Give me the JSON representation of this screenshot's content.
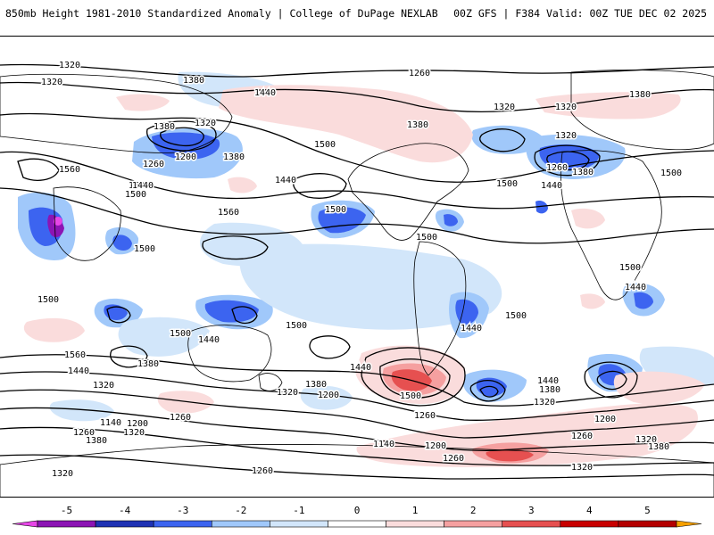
{
  "header": {
    "title": "850mb Height 1981-2010 Standardized Anomaly | College of DuPage NEXLAB",
    "run_info": "00Z GFS | F384 Valid: 00Z TUE DEC 02 2025"
  },
  "map": {
    "contour_labels": [
      {
        "text": "1320"
      },
      {
        "text": "1320"
      },
      {
        "text": "1380"
      },
      {
        "text": "1440"
      },
      {
        "text": "1260"
      },
      {
        "text": "1380"
      },
      {
        "text": "1320"
      },
      {
        "text": "1320"
      },
      {
        "text": "1380"
      },
      {
        "text": "1380"
      },
      {
        "text": "1320"
      },
      {
        "text": "1200"
      },
      {
        "text": "1260"
      },
      {
        "text": "1380"
      },
      {
        "text": "1440"
      },
      {
        "text": "1500"
      },
      {
        "text": "1500"
      },
      {
        "text": "1320"
      },
      {
        "text": "1260"
      },
      {
        "text": "1380"
      },
      {
        "text": "1500"
      },
      {
        "text": "1560"
      },
      {
        "text": "1440"
      },
      {
        "text": "1500"
      },
      {
        "text": "1500"
      },
      {
        "text": "1440"
      },
      {
        "text": "1560"
      },
      {
        "text": "1500"
      },
      {
        "text": "1500"
      },
      {
        "text": "1500"
      },
      {
        "text": "1500"
      },
      {
        "text": "1440"
      },
      {
        "text": "1500"
      },
      {
        "text": "1500"
      },
      {
        "text": "1500"
      },
      {
        "text": "1500"
      },
      {
        "text": "1440"
      },
      {
        "text": "1560"
      },
      {
        "text": "1440"
      },
      {
        "text": "1380"
      },
      {
        "text": "1320"
      },
      {
        "text": "1440"
      },
      {
        "text": "1380"
      },
      {
        "text": "1200"
      },
      {
        "text": "1320"
      },
      {
        "text": "1500"
      },
      {
        "text": "1440"
      },
      {
        "text": "1440"
      },
      {
        "text": "1380"
      },
      {
        "text": "1320"
      },
      {
        "text": "1260"
      },
      {
        "text": "1260"
      },
      {
        "text": "1140"
      },
      {
        "text": "1200"
      },
      {
        "text": "1260"
      },
      {
        "text": "1320"
      },
      {
        "text": "1380"
      },
      {
        "text": "1140"
      },
      {
        "text": "1200"
      },
      {
        "text": "1260"
      },
      {
        "text": "1200"
      },
      {
        "text": "1260"
      },
      {
        "text": "1320"
      },
      {
        "text": "1380"
      },
      {
        "text": "1320"
      },
      {
        "text": "1320"
      },
      {
        "text": "1260"
      }
    ]
  },
  "colorbar": {
    "ticks": [
      "-5",
      "-4",
      "-3",
      "-2",
      "-1",
      "0",
      "1",
      "2",
      "3",
      "4",
      "5"
    ],
    "colors": [
      "#e646e6",
      "#8c14b4",
      "#1e32b4",
      "#3c64f0",
      "#a0c8fa",
      "#d2e6fa",
      "#ffffff",
      "#fadcdc",
      "#f5a0a0",
      "#e65050",
      "#c80000",
      "#b40000",
      "#f5a000"
    ]
  }
}
